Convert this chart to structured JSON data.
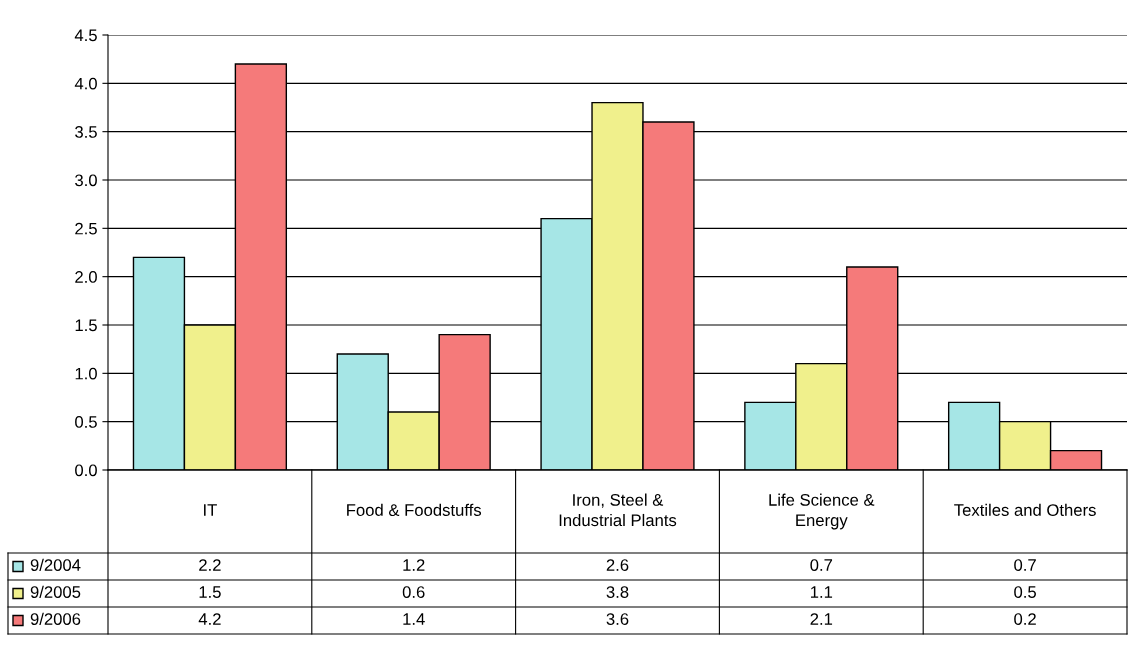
{
  "chart_data": {
    "type": "bar",
    "categories": [
      "IT",
      "Food & Foodstuffs",
      "Iron, Steel &\nIndustrial Plants",
      "Life Science &\nEnergy",
      "Textiles and Others"
    ],
    "series": [
      {
        "name": "9/2004",
        "color": "#a6e6e6",
        "values": [
          2.2,
          1.2,
          2.6,
          0.7,
          0.7
        ]
      },
      {
        "name": "9/2005",
        "color": "#f0f08c",
        "values": [
          1.5,
          0.6,
          3.8,
          1.1,
          0.5
        ]
      },
      {
        "name": "9/2006",
        "color": "#f57a7a",
        "values": [
          4.2,
          1.4,
          3.6,
          2.1,
          0.2
        ]
      }
    ],
    "ylim": [
      0,
      4.5
    ],
    "yticks": [
      {
        "value": 0,
        "label": "0.0"
      },
      {
        "value": 0.5,
        "label": "0.5"
      },
      {
        "value": 1,
        "label": "1.0"
      },
      {
        "value": 1.5,
        "label": "1.5"
      },
      {
        "value": 2,
        "label": "2.0"
      },
      {
        "value": 2.5,
        "label": "2.5"
      },
      {
        "value": 3,
        "label": "3.0"
      },
      {
        "value": 3.5,
        "label": "3.5"
      },
      {
        "value": 4,
        "label": "4.0"
      },
      {
        "value": 4.5,
        "label": "4.5"
      }
    ],
    "grid": "y",
    "legend": "bottom",
    "data_labels": true
  }
}
